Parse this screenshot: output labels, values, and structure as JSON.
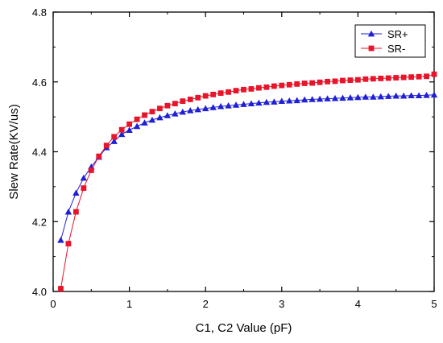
{
  "chart_data": {
    "type": "line",
    "title": "",
    "xlabel": "C1, C2 Value (pF)",
    "ylabel": "Slew Rate(KV/us)",
    "xlim": [
      0,
      5
    ],
    "ylim": [
      4.0,
      4.8
    ],
    "x_ticks": [
      0,
      1,
      2,
      3,
      4,
      5
    ],
    "y_ticks": [
      4.0,
      4.2,
      4.4,
      4.6,
      4.8
    ],
    "x_tick_labels": [
      "0",
      "1",
      "2",
      "3",
      "4",
      "5"
    ],
    "y_tick_labels": [
      "4.0",
      "4.2",
      "4.4",
      "4.6",
      "4.8"
    ],
    "grid": false,
    "legend_position": "top-right",
    "x": [
      0.1,
      0.2,
      0.3,
      0.4,
      0.5,
      0.6,
      0.7,
      0.8,
      0.9,
      1.0,
      1.1,
      1.2,
      1.3,
      1.4,
      1.5,
      1.6,
      1.7,
      1.8,
      1.9,
      2.0,
      2.1,
      2.2,
      2.3,
      2.4,
      2.5,
      2.6,
      2.7,
      2.8,
      2.9,
      3.0,
      3.1,
      3.2,
      3.3,
      3.4,
      3.5,
      3.6,
      3.7,
      3.8,
      3.9,
      4.0,
      4.1,
      4.2,
      4.3,
      4.4,
      4.5,
      4.6,
      4.7,
      4.8,
      4.9,
      5.0
    ],
    "series": [
      {
        "name": "SR+",
        "color": "#1f1fd6",
        "marker": "triangle",
        "values": [
          4.147,
          4.228,
          4.282,
          4.325,
          4.357,
          4.385,
          4.412,
          4.43,
          4.45,
          4.462,
          4.473,
          4.483,
          4.491,
          4.498,
          4.504,
          4.509,
          4.514,
          4.518,
          4.521,
          4.524,
          4.527,
          4.53,
          4.532,
          4.534,
          4.536,
          4.538,
          4.54,
          4.542,
          4.543,
          4.545,
          4.546,
          4.547,
          4.549,
          4.55,
          4.551,
          4.552,
          4.553,
          4.554,
          4.555,
          4.556,
          4.557,
          4.557,
          4.558,
          4.559,
          4.56,
          4.56,
          4.561,
          4.561,
          4.562,
          4.563
        ]
      },
      {
        "name": "SR-",
        "color": "#e8142a",
        "marker": "square",
        "values": [
          4.008,
          4.137,
          4.228,
          4.296,
          4.347,
          4.387,
          4.418,
          4.443,
          4.463,
          4.479,
          4.493,
          4.505,
          4.515,
          4.524,
          4.532,
          4.538,
          4.545,
          4.55,
          4.555,
          4.56,
          4.564,
          4.568,
          4.571,
          4.575,
          4.578,
          4.58,
          4.583,
          4.585,
          4.588,
          4.59,
          4.592,
          4.594,
          4.596,
          4.597,
          4.599,
          4.601,
          4.602,
          4.604,
          4.605,
          4.606,
          4.608,
          4.609,
          4.61,
          4.611,
          4.612,
          4.613,
          4.614,
          4.615,
          4.616,
          4.622
        ]
      }
    ]
  }
}
